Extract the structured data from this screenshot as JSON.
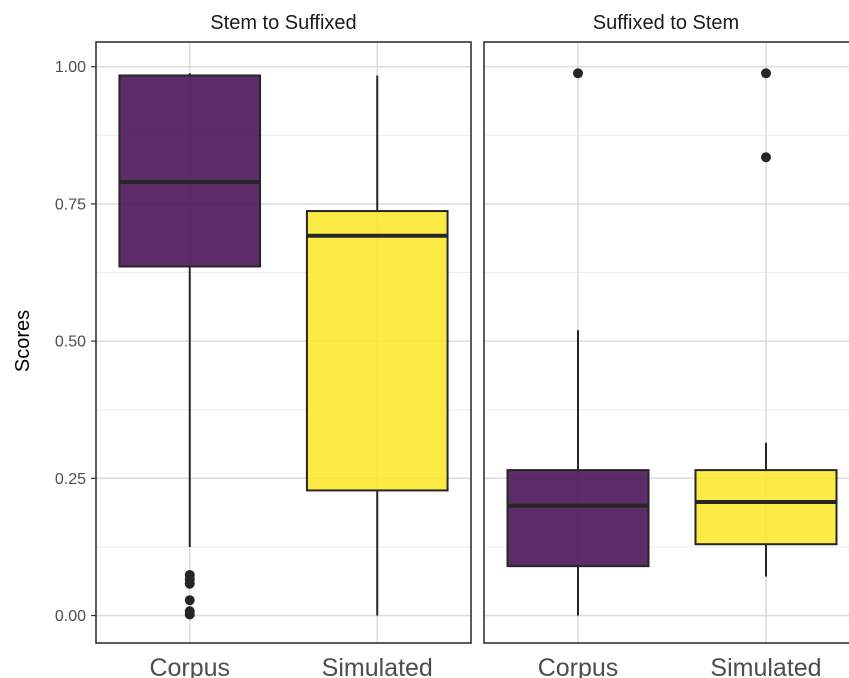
{
  "chart_data": {
    "type": "boxplot",
    "ylabel": "Scores",
    "ylim": [
      -0.05,
      1.045
    ],
    "yticks": [
      0.0,
      0.25,
      0.5,
      0.75,
      1.0
    ],
    "ytick_labels": [
      "0.00",
      "0.25",
      "0.50",
      "0.75",
      "1.00"
    ],
    "categories": [
      "Corpus",
      "Simulated"
    ],
    "colors": {
      "Corpus": "#4a1658",
      "Simulated": "#fde725"
    },
    "grid": true,
    "legend": "none",
    "panels": [
      {
        "title": "Stem to Suffixed",
        "boxes": [
          {
            "category": "Corpus",
            "min": 0.125,
            "q1": 0.636,
            "median": 0.79,
            "q3": 0.984,
            "max": 0.988,
            "outliers": [
              0.074,
              0.066,
              0.058,
              0.028,
              0.008,
              0.002
            ]
          },
          {
            "category": "Simulated",
            "min": 0.0,
            "q1": 0.228,
            "median": 0.692,
            "q3": 0.737,
            "max": 0.984,
            "outliers": []
          }
        ]
      },
      {
        "title": "Suffixed to Stem",
        "boxes": [
          {
            "category": "Corpus",
            "min": 0.0,
            "q1": 0.09,
            "median": 0.2,
            "q3": 0.265,
            "max": 0.52,
            "outliers": [
              0.988
            ]
          },
          {
            "category": "Simulated",
            "min": 0.071,
            "q1": 0.13,
            "median": 0.207,
            "q3": 0.265,
            "max": 0.315,
            "outliers": [
              0.988,
              0.835
            ]
          }
        ]
      }
    ]
  }
}
